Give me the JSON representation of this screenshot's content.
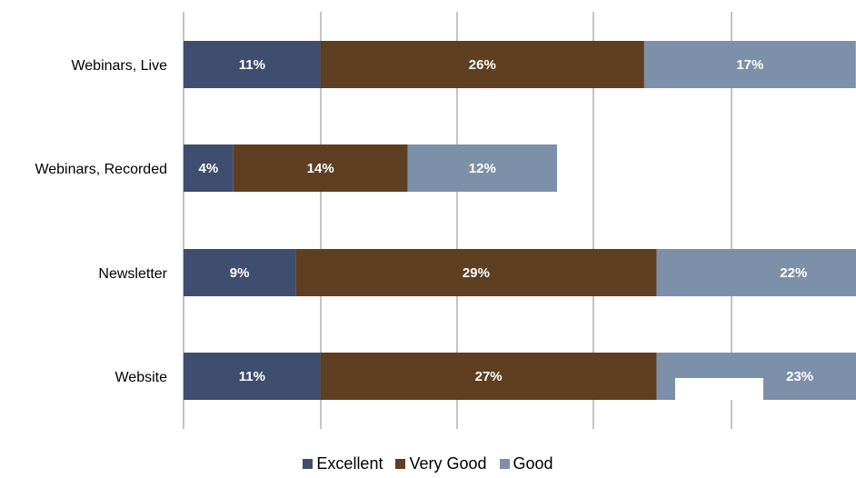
{
  "chart_data": {
    "type": "bar",
    "orientation": "horizontal",
    "stacked": true,
    "categories": [
      "Webinars, Live",
      "Webinars, Recorded",
      "Newsletter",
      "Website"
    ],
    "series": [
      {
        "name": "Excellent",
        "color": "#3f4d6e",
        "values": [
          11,
          4,
          9,
          11
        ],
        "labels": [
          "11%",
          "4%",
          "9%",
          "11%"
        ]
      },
      {
        "name": "Very Good",
        "color": "#5e3f22",
        "values": [
          26,
          14,
          29,
          27
        ],
        "labels": [
          "26%",
          "14%",
          "29%",
          "27%"
        ]
      },
      {
        "name": "Good",
        "color": "#7d90aa",
        "values": [
          17,
          12,
          22,
          23
        ],
        "labels": [
          "17%",
          "12%",
          "22%",
          "23%"
        ]
      }
    ],
    "grid": true,
    "legend_position": "bottom"
  },
  "legend": {
    "excellent_label": "Excellent",
    "very_good_label": "Very Good",
    "good_label": "Good",
    "excellent_color": "#3f4d6e",
    "very_good_color": "#5e3f22",
    "good_color": "#7d90aa"
  }
}
